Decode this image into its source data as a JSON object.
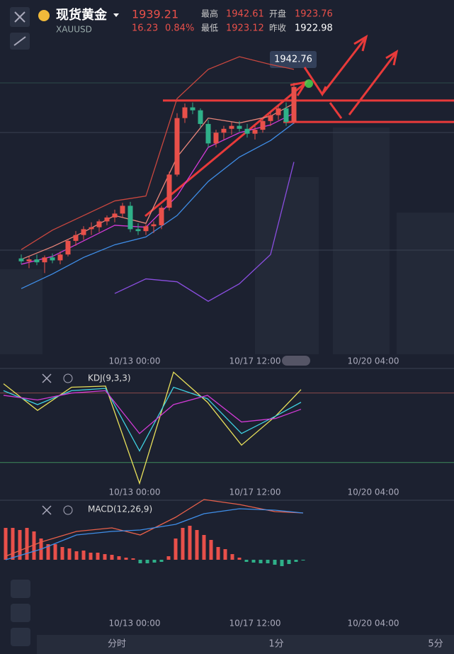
{
  "header": {
    "name": "现货黄金",
    "price": "1939.21",
    "symbol": "XAUUSD",
    "change": "16.23",
    "change_pct": "0.84%",
    "high_label": "最高",
    "high": "1942.61",
    "open_label": "开盘",
    "open": "1923.76",
    "low_label": "最低",
    "low": "1923.12",
    "prev_label": "昨收",
    "prev": "1922.98"
  },
  "x_labels": [
    "10/13 00:00",
    "10/17 12:00",
    "10/20 04:00"
  ],
  "main_chart": {
    "type": "candlestick",
    "ylim": [
      1914.76,
      1951.12
    ],
    "up_color": "#e8504a",
    "down_color": "#2fb089",
    "max_label": "1942.76",
    "candles": [
      [
        1924.6,
        1925.0,
        1924.0,
        1924.3
      ],
      [
        1924.3,
        1924.8,
        1923.6,
        1924.5
      ],
      [
        1924.5,
        1925.0,
        1923.9,
        1924.2
      ],
      [
        1924.2,
        1924.9,
        1923.1,
        1924.7
      ],
      [
        1924.7,
        1925.1,
        1924.1,
        1924.4
      ],
      [
        1924.4,
        1925.3,
        1924.0,
        1925.0
      ],
      [
        1925.0,
        1926.6,
        1924.8,
        1926.4
      ],
      [
        1926.4,
        1927.4,
        1925.9,
        1927.0
      ],
      [
        1927.0,
        1927.9,
        1926.5,
        1927.6
      ],
      [
        1927.6,
        1928.3,
        1927.0,
        1927.8
      ],
      [
        1927.8,
        1928.6,
        1927.3,
        1928.4
      ],
      [
        1928.4,
        1929.0,
        1928.0,
        1928.8
      ],
      [
        1928.8,
        1929.6,
        1928.3,
        1929.2
      ],
      [
        1929.2,
        1930.3,
        1928.8,
        1930.0
      ],
      [
        1930.0,
        1930.4,
        1927.3,
        1927.6
      ],
      [
        1927.6,
        1928.2,
        1927.0,
        1927.4
      ],
      [
        1927.4,
        1928.1,
        1927.0,
        1927.9
      ],
      [
        1927.9,
        1928.4,
        1927.2,
        1928.1
      ],
      [
        1928.0,
        1930.0,
        1927.6,
        1929.8
      ],
      [
        1929.8,
        1933.5,
        1929.5,
        1933.2
      ],
      [
        1933.2,
        1939.5,
        1933.0,
        1939.0
      ],
      [
        1939.0,
        1940.5,
        1938.5,
        1940.1
      ],
      [
        1940.1,
        1940.6,
        1939.4,
        1939.8
      ],
      [
        1939.8,
        1940.0,
        1938.0,
        1938.4
      ],
      [
        1938.4,
        1938.8,
        1936.0,
        1936.4
      ],
      [
        1936.4,
        1937.8,
        1936.0,
        1937.5
      ],
      [
        1937.5,
        1938.2,
        1936.8,
        1937.9
      ],
      [
        1937.9,
        1938.6,
        1937.3,
        1938.2
      ],
      [
        1938.2,
        1938.7,
        1937.6,
        1937.9
      ],
      [
        1937.9,
        1938.4,
        1937.0,
        1937.4
      ],
      [
        1937.4,
        1938.2,
        1936.8,
        1937.8
      ],
      [
        1937.8,
        1939.0,
        1937.5,
        1938.7
      ],
      [
        1938.7,
        1939.6,
        1938.2,
        1939.3
      ],
      [
        1939.3,
        1940.4,
        1938.8,
        1940.0
      ],
      [
        1940.0,
        1940.6,
        1938.2,
        1938.6
      ],
      [
        1938.6,
        1942.6,
        1938.4,
        1942.2
      ]
    ],
    "line_x": [
      0,
      4,
      8,
      12,
      16,
      20,
      24,
      28,
      32,
      35
    ],
    "lines": [
      {
        "color": "#c9473f",
        "values": [
          1925.5,
          1927.5,
          1929,
          1930.5,
          1931,
          1941,
          1944,
          1945.3,
          1944.5,
          1944
        ]
      },
      {
        "color": "#e8857a",
        "values": [
          1924.5,
          1925.8,
          1927.3,
          1929,
          1928.2,
          1935,
          1939,
          1938.5,
          1939.2,
          1940.5
        ]
      },
      {
        "color": "#d23ad6",
        "values": [
          1924,
          1924.8,
          1926.4,
          1928,
          1927.8,
          1931,
          1936,
          1937.5,
          1938.3,
          1939.5
        ]
      },
      {
        "color": "#3f8ee8",
        "values": [
          1921.5,
          1923,
          1924.7,
          1926,
          1926.8,
          1929,
          1932.5,
          1935,
          1936.7,
          1938.5
        ]
      },
      {
        "color": "#8a4ee0",
        "values": [
          null,
          null,
          null,
          1921,
          1922.5,
          1922.2,
          1920.2,
          1922,
          1925,
          1934.5
        ]
      }
    ],
    "levels": [
      1940.8,
      1938.6
    ]
  },
  "kdj": {
    "type": "line",
    "label": "KDJ(9,3,3)",
    "ylim": [
      -12,
      100
    ],
    "bands": [
      80,
      20
    ],
    "series": [
      {
        "color": "#e8e05a",
        "values": [
          88,
          65,
          85,
          86,
          2,
          98,
          72,
          35,
          60,
          83
        ]
      },
      {
        "color": "#3fd0e0",
        "values": [
          82,
          70,
          82,
          84,
          30,
          85,
          75,
          45,
          60,
          72
        ]
      },
      {
        "color": "#d23ad6",
        "values": [
          78,
          74,
          80,
          82,
          45,
          70,
          78,
          55,
          58,
          66
        ]
      }
    ]
  },
  "macd": {
    "type": "bar",
    "label": "MACD(12,26,9)",
    "ylim": [
      -1.05,
      0.84
    ],
    "up_color": "#e8504a",
    "down_color": "#2fb089",
    "hist": [
      0.45,
      0.45,
      0.42,
      0.45,
      0.4,
      0.3,
      0.22,
      0.22,
      0.18,
      0.16,
      0.12,
      0.13,
      0.1,
      0.1,
      0.08,
      0.07,
      0.05,
      0.03,
      0.02,
      -0.05,
      -0.05,
      -0.04,
      -0.03,
      0.05,
      0.3,
      0.45,
      0.48,
      0.42,
      0.35,
      0.28,
      0.18,
      0.15,
      0.08,
      0.03,
      -0.03,
      -0.04,
      -0.05,
      -0.05,
      -0.07,
      -0.09,
      -0.06,
      -0.03,
      -0.01
    ],
    "line_x": [
      0,
      5,
      10,
      15,
      19,
      24,
      28,
      33,
      38,
      42
    ],
    "series": [
      {
        "color": "#e8604a",
        "values": [
          0.05,
          0.25,
          0.4,
          0.45,
          0.35,
          0.6,
          0.85,
          0.78,
          0.68,
          0.66
        ]
      },
      {
        "color": "#3f8ee8",
        "values": [
          0.0,
          0.15,
          0.35,
          0.4,
          0.42,
          0.5,
          0.65,
          0.72,
          0.7,
          0.66
        ]
      }
    ]
  },
  "tabs": [
    "分时",
    "1分",
    "5分"
  ]
}
